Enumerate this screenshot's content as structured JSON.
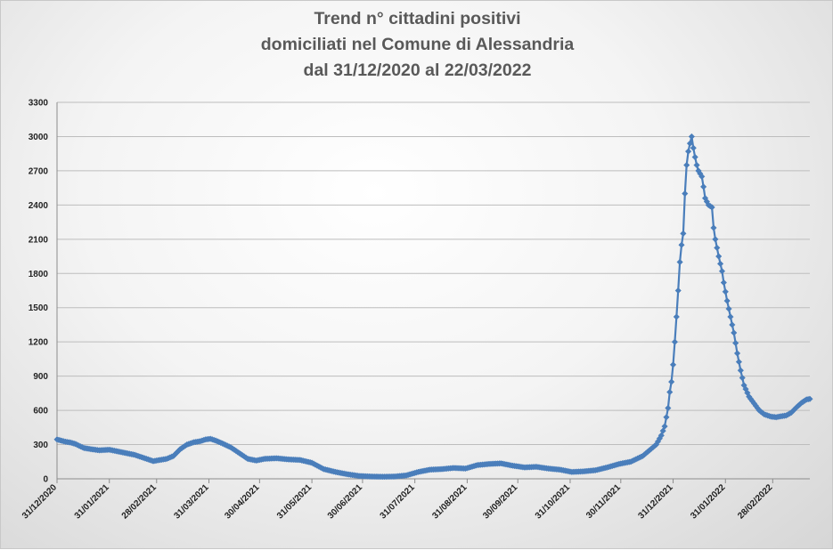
{
  "chart_data": {
    "type": "line",
    "title": [
      "Trend n° cittadini positivi",
      "domiciliati nel Comune di Alessandria",
      "dal 31/12/2020 al 22/03/2022"
    ],
    "xlabel": "",
    "ylabel": "",
    "ylim": [
      0,
      3300
    ],
    "yticks": [
      0,
      300,
      600,
      900,
      1200,
      1500,
      1800,
      2100,
      2400,
      2700,
      3000,
      3300
    ],
    "xlim": [
      "2020-12-31",
      "2022-03-22"
    ],
    "xtick_labels": [
      "31/12/2020",
      "31/01/2021",
      "28/02/2021",
      "31/03/2021",
      "30/04/2021",
      "31/05/2021",
      "30/06/2021",
      "31/07/2021",
      "31/08/2021",
      "30/09/2021",
      "31/10/2021",
      "30/11/2021",
      "31/12/2021",
      "31/01/2022",
      "28/02/2022"
    ],
    "grid": "horizontal",
    "series_color": "#4a7ebb",
    "marker": "diamond",
    "series": [
      {
        "points": [
          [
            "2020-12-31",
            345
          ],
          [
            "2021-01-05",
            325
          ],
          [
            "2021-01-08",
            318
          ],
          [
            "2021-01-11",
            305
          ],
          [
            "2021-01-13",
            290
          ],
          [
            "2021-01-16",
            270
          ],
          [
            "2021-01-20",
            260
          ],
          [
            "2021-01-25",
            250
          ],
          [
            "2021-01-31",
            255
          ],
          [
            "2021-02-05",
            240
          ],
          [
            "2021-02-10",
            225
          ],
          [
            "2021-02-15",
            210
          ],
          [
            "2021-02-20",
            185
          ],
          [
            "2021-02-26",
            155
          ],
          [
            "2021-03-02",
            165
          ],
          [
            "2021-03-06",
            175
          ],
          [
            "2021-03-10",
            200
          ],
          [
            "2021-03-14",
            260
          ],
          [
            "2021-03-18",
            300
          ],
          [
            "2021-03-22",
            320
          ],
          [
            "2021-03-26",
            330
          ],
          [
            "2021-03-29",
            345
          ],
          [
            "2021-04-01",
            350
          ],
          [
            "2021-04-04",
            335
          ],
          [
            "2021-04-08",
            310
          ],
          [
            "2021-04-13",
            275
          ],
          [
            "2021-04-18",
            225
          ],
          [
            "2021-04-23",
            175
          ],
          [
            "2021-04-28",
            160
          ],
          [
            "2021-05-03",
            175
          ],
          [
            "2021-05-10",
            180
          ],
          [
            "2021-05-17",
            170
          ],
          [
            "2021-05-24",
            165
          ],
          [
            "2021-05-31",
            140
          ],
          [
            "2021-06-07",
            85
          ],
          [
            "2021-06-14",
            60
          ],
          [
            "2021-06-21",
            40
          ],
          [
            "2021-06-28",
            25
          ],
          [
            "2021-07-05",
            20
          ],
          [
            "2021-07-12",
            18
          ],
          [
            "2021-07-19",
            20
          ],
          [
            "2021-07-26",
            30
          ],
          [
            "2021-08-02",
            60
          ],
          [
            "2021-08-09",
            80
          ],
          [
            "2021-08-16",
            85
          ],
          [
            "2021-08-23",
            95
          ],
          [
            "2021-08-30",
            90
          ],
          [
            "2021-09-06",
            120
          ],
          [
            "2021-09-13",
            130
          ],
          [
            "2021-09-20",
            135
          ],
          [
            "2021-09-27",
            115
          ],
          [
            "2021-10-04",
            100
          ],
          [
            "2021-10-11",
            105
          ],
          [
            "2021-10-18",
            90
          ],
          [
            "2021-10-25",
            80
          ],
          [
            "2021-11-01",
            60
          ],
          [
            "2021-11-08",
            65
          ],
          [
            "2021-11-15",
            75
          ],
          [
            "2021-11-22",
            100
          ],
          [
            "2021-11-29",
            130
          ],
          [
            "2021-12-06",
            150
          ],
          [
            "2021-12-13",
            200
          ],
          [
            "2021-12-17",
            250
          ],
          [
            "2021-12-21",
            300
          ],
          [
            "2021-12-24",
            380
          ],
          [
            "2021-12-26",
            460
          ],
          [
            "2021-12-28",
            620
          ],
          [
            "2021-12-29",
            760
          ],
          [
            "2021-12-30",
            850
          ],
          [
            "2021-12-31",
            1000
          ],
          [
            "2022-01-01",
            1200
          ],
          [
            "2022-01-02",
            1420
          ],
          [
            "2022-01-03",
            1650
          ],
          [
            "2022-01-04",
            1900
          ],
          [
            "2022-01-05",
            2050
          ],
          [
            "2022-01-06",
            2150
          ],
          [
            "2022-01-07",
            2500
          ],
          [
            "2022-01-08",
            2750
          ],
          [
            "2022-01-09",
            2870
          ],
          [
            "2022-01-10",
            2940
          ],
          [
            "2022-01-11",
            3000
          ],
          [
            "2022-01-12",
            2900
          ],
          [
            "2022-01-13",
            2820
          ],
          [
            "2022-01-14",
            2750
          ],
          [
            "2022-01-15",
            2700
          ],
          [
            "2022-01-17",
            2650
          ],
          [
            "2022-01-18",
            2560
          ],
          [
            "2022-01-19",
            2460
          ],
          [
            "2022-01-21",
            2400
          ],
          [
            "2022-01-23",
            2380
          ],
          [
            "2022-01-24",
            2200
          ],
          [
            "2022-01-25",
            2100
          ],
          [
            "2022-01-27",
            1950
          ],
          [
            "2022-01-29",
            1820
          ],
          [
            "2022-01-30",
            1720
          ],
          [
            "2022-02-01",
            1560
          ],
          [
            "2022-02-03",
            1420
          ],
          [
            "2022-02-05",
            1280
          ],
          [
            "2022-02-07",
            1100
          ],
          [
            "2022-02-09",
            950
          ],
          [
            "2022-02-11",
            820
          ],
          [
            "2022-02-14",
            720
          ],
          [
            "2022-02-17",
            660
          ],
          [
            "2022-02-20",
            600
          ],
          [
            "2022-02-23",
            565
          ],
          [
            "2022-02-27",
            545
          ],
          [
            "2022-03-02",
            540
          ],
          [
            "2022-03-05",
            548
          ],
          [
            "2022-03-08",
            555
          ],
          [
            "2022-03-11",
            580
          ],
          [
            "2022-03-14",
            625
          ],
          [
            "2022-03-17",
            665
          ],
          [
            "2022-03-20",
            695
          ],
          [
            "2022-03-22",
            700
          ]
        ]
      }
    ]
  }
}
